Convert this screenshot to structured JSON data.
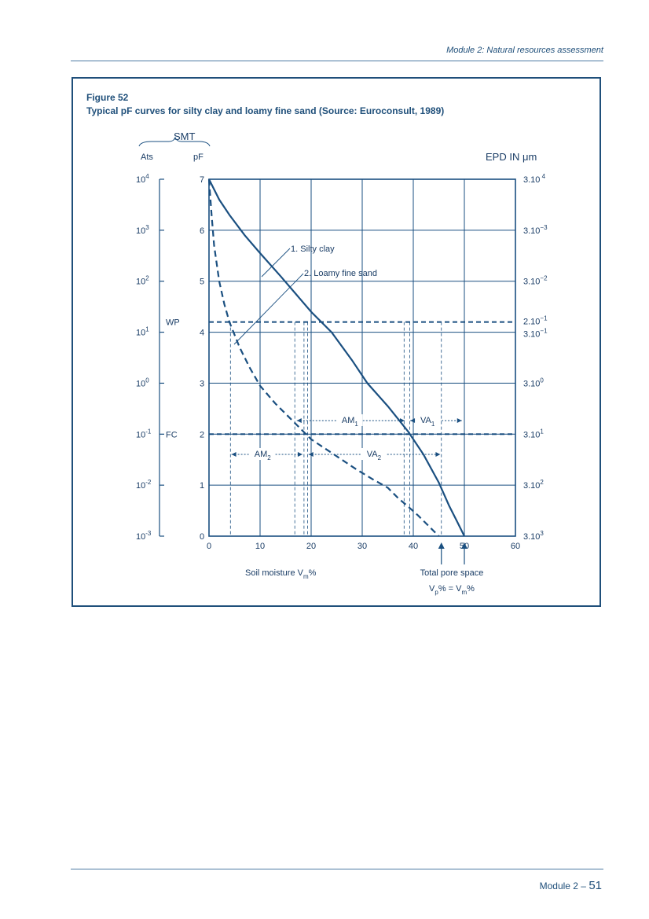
{
  "header": {
    "module": "Module 2: Natural resources assessment"
  },
  "figure": {
    "label": "Figure 52",
    "caption": "Typical pF curves for silty clay and loamy fine sand (Source: Euroconsult, 1989)"
  },
  "chart_data": {
    "type": "line",
    "smt_label": "SMT",
    "ats_label": "Ats",
    "pf_label": "pF",
    "epd_label": "EPD IN μm",
    "xlabel": "Soil moisture Vm%",
    "x_ticks": [
      "0",
      "10",
      "20",
      "30",
      "40",
      "50",
      "60"
    ],
    "xlim": [
      0,
      60
    ],
    "ylim": [
      0,
      7
    ],
    "pf_ticks": [
      "0",
      "1",
      "2",
      "3",
      "4",
      "5",
      "6",
      "7"
    ],
    "ats_ticks": [
      {
        "b": "10",
        "e": "-3",
        "v": 0
      },
      {
        "b": "10",
        "e": "-2",
        "v": 1
      },
      {
        "b": "10",
        "e": "-1",
        "v": 2
      },
      {
        "b": "10",
        "e": "0",
        "v": 3
      },
      {
        "b": "10",
        "e": "1",
        "v": 4
      },
      {
        "b": "10",
        "e": "2",
        "v": 5
      },
      {
        "b": "10",
        "e": "3",
        "v": 6
      },
      {
        "b": "10",
        "e": "4",
        "v": 7
      }
    ],
    "epd_ticks": [
      {
        "b": "3.10",
        "e": "3",
        "v": 0
      },
      {
        "b": "3.10",
        "e": "2",
        "v": 1
      },
      {
        "b": "3.10",
        "e": "1",
        "v": 2
      },
      {
        "b": "3.10",
        "e": "0",
        "v": 3
      },
      {
        "b": "3.10",
        "e": "−1",
        "v": 4
      },
      {
        "b": "2.10",
        "e": "−1",
        "v": 4.2
      },
      {
        "b": "3.10",
        "e": "−2",
        "v": 5
      },
      {
        "b": "3.10",
        "e": "−3",
        "v": 6
      },
      {
        "b": "3.10",
        "e": " 4",
        "v": 7
      }
    ],
    "wp_label": "WP",
    "fc_label": "FC",
    "wp_pf": 4.2,
    "fc_pf": 2.0,
    "series": [
      {
        "name": "1. Silty clay",
        "style": "solid",
        "x": [
          0,
          2,
          4,
          7,
          10,
          14,
          17,
          20,
          24,
          28,
          31,
          35,
          39,
          42,
          45,
          47,
          48.5,
          50
        ],
        "y": [
          7,
          6.6,
          6.3,
          5.9,
          5.55,
          5.1,
          4.75,
          4.4,
          4.0,
          3.45,
          3.0,
          2.55,
          2.05,
          1.6,
          1.05,
          0.6,
          0.3,
          0
        ]
      },
      {
        "name": "2. Loamy fine sand",
        "style": "dashed",
        "x": [
          0,
          0.5,
          1,
          2,
          3,
          4,
          6,
          8,
          10,
          13,
          16,
          18,
          20,
          23,
          26,
          29,
          32,
          35,
          37,
          39,
          41,
          43,
          44,
          45
        ],
        "y": [
          7,
          6.3,
          5.7,
          5.0,
          4.55,
          4.2,
          3.7,
          3.3,
          2.95,
          2.6,
          2.3,
          2.1,
          1.9,
          1.7,
          1.5,
          1.3,
          1.12,
          0.95,
          0.75,
          0.58,
          0.4,
          0.2,
          0.1,
          0
        ]
      }
    ],
    "am1_label": "AM1",
    "va1_label": "VA1",
    "am2_label": "AM2",
    "va2_label": "VA2",
    "total_pore": "Total pore space",
    "vp_eq": "Vp% = Vm%"
  },
  "footer": {
    "module": "Module 2 –",
    "page": "51"
  },
  "colors": {
    "primary": "#1a4f80",
    "text": "#1a3d66"
  }
}
